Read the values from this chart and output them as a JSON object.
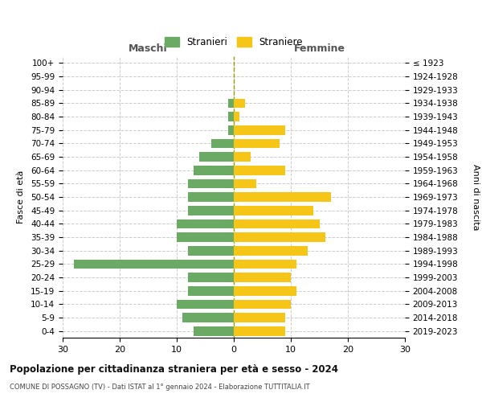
{
  "age_groups": [
    "100+",
    "95-99",
    "90-94",
    "85-89",
    "80-84",
    "75-79",
    "70-74",
    "65-69",
    "60-64",
    "55-59",
    "50-54",
    "45-49",
    "40-44",
    "35-39",
    "30-34",
    "25-29",
    "20-24",
    "15-19",
    "10-14",
    "5-9",
    "0-4"
  ],
  "birth_years": [
    "≤ 1923",
    "1924-1928",
    "1929-1933",
    "1934-1938",
    "1939-1943",
    "1944-1948",
    "1949-1953",
    "1954-1958",
    "1959-1963",
    "1964-1968",
    "1969-1973",
    "1974-1978",
    "1979-1983",
    "1984-1988",
    "1989-1993",
    "1994-1998",
    "1999-2003",
    "2004-2008",
    "2009-2013",
    "2014-2018",
    "2019-2023"
  ],
  "males": [
    0,
    0,
    0,
    1,
    1,
    1,
    4,
    6,
    7,
    8,
    8,
    8,
    10,
    10,
    8,
    28,
    8,
    8,
    10,
    9,
    7
  ],
  "females": [
    0,
    0,
    0,
    2,
    1,
    9,
    8,
    3,
    9,
    4,
    17,
    14,
    15,
    16,
    13,
    11,
    10,
    11,
    10,
    9,
    9
  ],
  "male_color": "#6aaa64",
  "female_color": "#f5c518",
  "background_color": "#ffffff",
  "grid_color": "#cccccc",
  "title": "Popolazione per cittadinanza straniera per età e sesso - 2024",
  "subtitle": "COMUNE DI POSSAGNO (TV) - Dati ISTAT al 1° gennaio 2024 - Elaborazione TUTTITALIA.IT",
  "ylabel_left": "Fasce di età",
  "ylabel_right": "Anni di nascita",
  "xlabel_left": "Maschi",
  "xlabel_right": "Femmine",
  "legend_stranieri": "Stranieri",
  "legend_straniere": "Straniere",
  "xlim": 30,
  "bar_height": 0.7
}
